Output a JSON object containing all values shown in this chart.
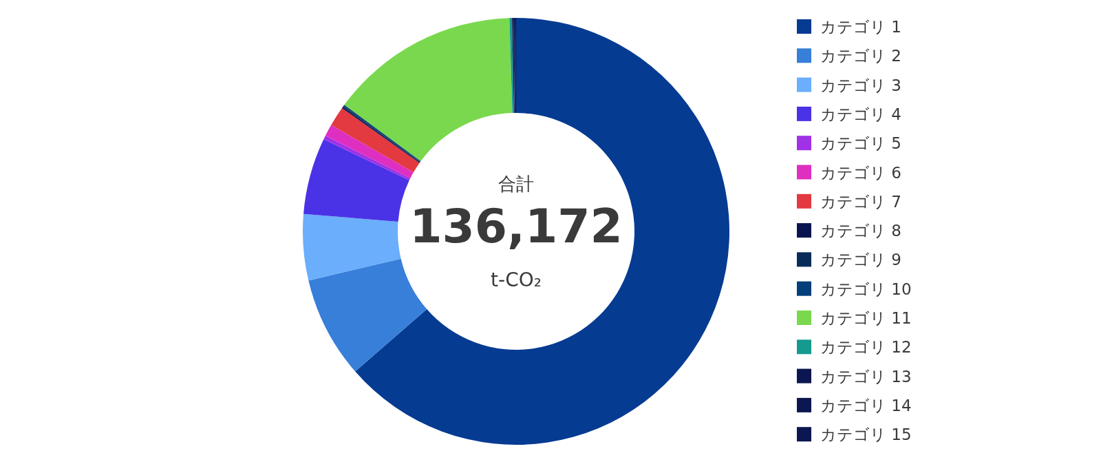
{
  "chart_data": {
    "type": "donut",
    "categories": [
      "カテゴリ 1",
      "カテゴリ 2",
      "カテゴリ 3",
      "カテゴリ 4",
      "カテゴリ 5",
      "カテゴリ 6",
      "カテゴリ 7",
      "カテゴリ 8",
      "カテゴリ 9",
      "カテゴリ 10",
      "カテゴリ 11",
      "カテゴリ 12",
      "カテゴリ 13",
      "カテゴリ 14",
      "カテゴリ 15"
    ],
    "values": [
      63.6,
      7.7,
      5.0,
      5.8,
      0.3,
      0.9,
      1.5,
      0.1,
      0.1,
      0.1,
      14.4,
      0.2,
      0.1,
      0.1,
      0.1
    ],
    "colors": [
      "#063b92",
      "#377fd9",
      "#6aaefc",
      "#4a32e6",
      "#a031e6",
      "#df2fc0",
      "#e33941",
      "#0a1550",
      "#082c58",
      "#053f7a",
      "#7ad84e",
      "#159a90",
      "#0c1650",
      "#0c1650",
      "#0c1650"
    ],
    "annotations": [
      "合計",
      "136,172",
      "t-CO₂"
    ],
    "legend": "right"
  }
}
